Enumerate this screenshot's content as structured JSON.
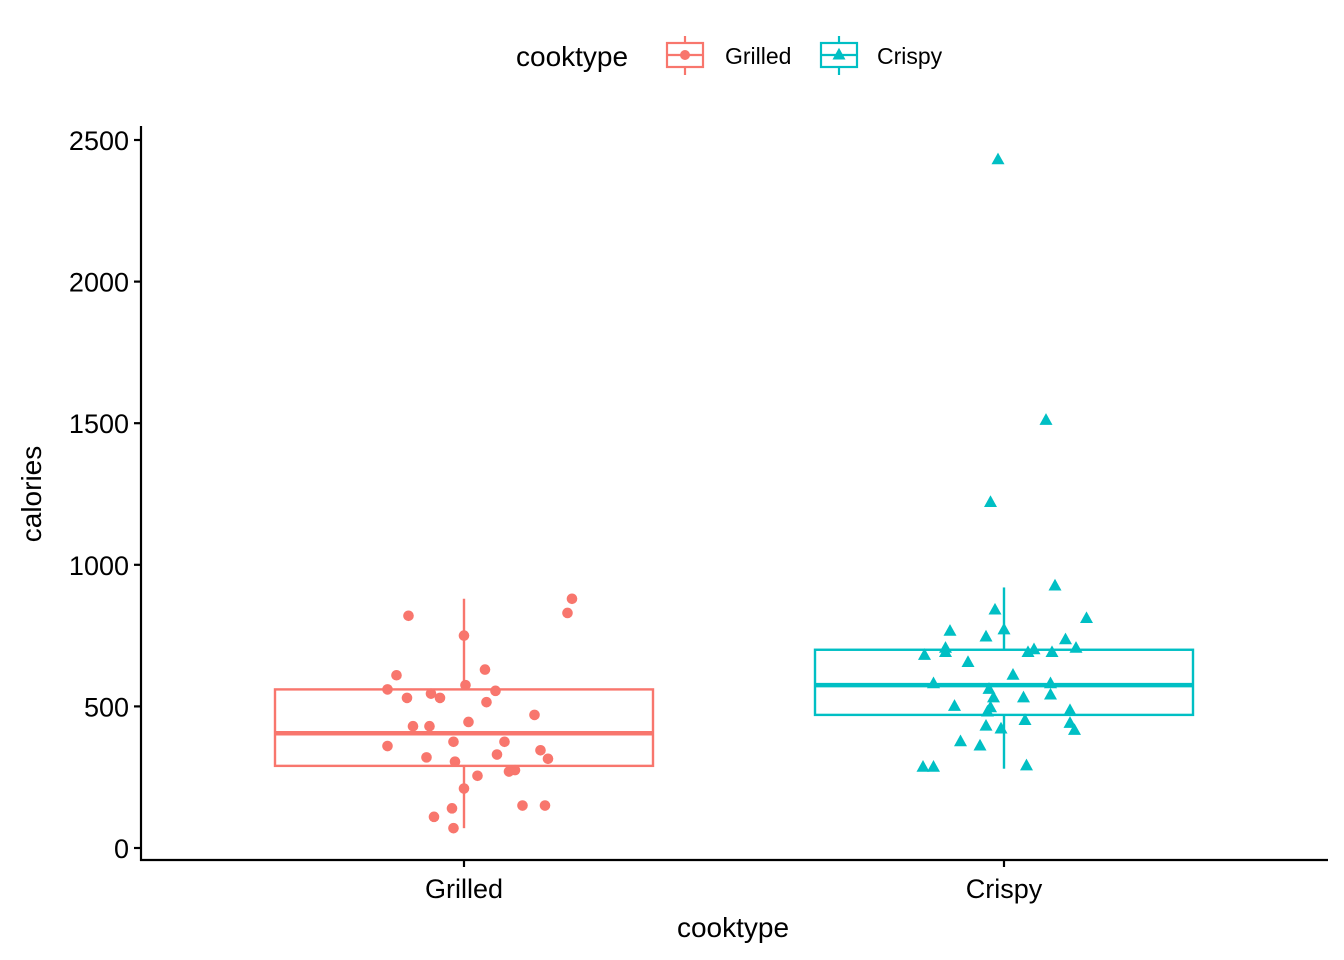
{
  "chart_data": {
    "type": "box",
    "xlabel": "cooktype",
    "ylabel": "calories",
    "ylim": [
      0,
      2500
    ],
    "y_ticks": [
      "0",
      "500",
      "1000",
      "1500",
      "2000",
      "2500"
    ],
    "categories": [
      "Grilled",
      "Crispy"
    ],
    "grid": false,
    "legend": {
      "title": "cooktype",
      "placement": "top",
      "entries": [
        "Grilled",
        "Crispy"
      ]
    },
    "series": [
      {
        "name": "Grilled",
        "color": "#F8766D",
        "marker": "circle",
        "box": {
          "whisker_low": 70,
          "q1": 290,
          "median": 405,
          "q3": 560,
          "whisker_high": 880
        },
        "points": [
          {
            "jitter": 0.72,
            "value": 880
          },
          {
            "jitter": 0.69,
            "value": 830
          },
          {
            "jitter": -0.37,
            "value": 820
          },
          {
            "jitter": 0.0,
            "value": 750
          },
          {
            "jitter": -0.45,
            "value": 610
          },
          {
            "jitter": 0.14,
            "value": 630
          },
          {
            "jitter": 0.01,
            "value": 575
          },
          {
            "jitter": -0.51,
            "value": 560
          },
          {
            "jitter": 0.21,
            "value": 555
          },
          {
            "jitter": -0.22,
            "value": 545
          },
          {
            "jitter": -0.38,
            "value": 530
          },
          {
            "jitter": -0.16,
            "value": 530
          },
          {
            "jitter": 0.15,
            "value": 515
          },
          {
            "jitter": 0.47,
            "value": 470
          },
          {
            "jitter": 0.03,
            "value": 445
          },
          {
            "jitter": -0.34,
            "value": 430
          },
          {
            "jitter": -0.23,
            "value": 430
          },
          {
            "jitter": -0.07,
            "value": 375
          },
          {
            "jitter": 0.27,
            "value": 375
          },
          {
            "jitter": -0.51,
            "value": 360
          },
          {
            "jitter": 0.51,
            "value": 345
          },
          {
            "jitter": 0.22,
            "value": 330
          },
          {
            "jitter": -0.25,
            "value": 320
          },
          {
            "jitter": 0.56,
            "value": 315
          },
          {
            "jitter": -0.06,
            "value": 305
          },
          {
            "jitter": 0.34,
            "value": 275
          },
          {
            "jitter": 0.3,
            "value": 270
          },
          {
            "jitter": 0.09,
            "value": 255
          },
          {
            "jitter": 0.0,
            "value": 210
          },
          {
            "jitter": 0.39,
            "value": 150
          },
          {
            "jitter": 0.54,
            "value": 150
          },
          {
            "jitter": -0.08,
            "value": 140
          },
          {
            "jitter": -0.2,
            "value": 110
          },
          {
            "jitter": -0.07,
            "value": 70
          }
        ]
      },
      {
        "name": "Crispy",
        "color": "#00BFC4",
        "marker": "triangle",
        "box": {
          "whisker_low": 280,
          "q1": 470,
          "median": 575,
          "q3": 700,
          "whisker_high": 920
        },
        "points": [
          {
            "jitter": -0.04,
            "value": 2430
          },
          {
            "jitter": 0.28,
            "value": 1510
          },
          {
            "jitter": -0.09,
            "value": 1220
          },
          {
            "jitter": 0.34,
            "value": 925
          },
          {
            "jitter": -0.06,
            "value": 840
          },
          {
            "jitter": 0.55,
            "value": 810
          },
          {
            "jitter": 0.0,
            "value": 770
          },
          {
            "jitter": -0.36,
            "value": 765
          },
          {
            "jitter": -0.12,
            "value": 745
          },
          {
            "jitter": 0.41,
            "value": 735
          },
          {
            "jitter": -0.39,
            "value": 705
          },
          {
            "jitter": 0.48,
            "value": 705
          },
          {
            "jitter": 0.2,
            "value": 700
          },
          {
            "jitter": -0.39,
            "value": 690
          },
          {
            "jitter": 0.16,
            "value": 690
          },
          {
            "jitter": 0.32,
            "value": 690
          },
          {
            "jitter": -0.53,
            "value": 680
          },
          {
            "jitter": -0.24,
            "value": 655
          },
          {
            "jitter": 0.06,
            "value": 610
          },
          {
            "jitter": 0.31,
            "value": 580
          },
          {
            "jitter": -0.47,
            "value": 580
          },
          {
            "jitter": -0.1,
            "value": 560
          },
          {
            "jitter": -0.07,
            "value": 530
          },
          {
            "jitter": 0.13,
            "value": 530
          },
          {
            "jitter": 0.31,
            "value": 540
          },
          {
            "jitter": -0.33,
            "value": 500
          },
          {
            "jitter": -0.09,
            "value": 495
          },
          {
            "jitter": -0.11,
            "value": 480
          },
          {
            "jitter": 0.44,
            "value": 485
          },
          {
            "jitter": 0.14,
            "value": 450
          },
          {
            "jitter": 0.44,
            "value": 440
          },
          {
            "jitter": -0.12,
            "value": 430
          },
          {
            "jitter": -0.02,
            "value": 420
          },
          {
            "jitter": 0.47,
            "value": 415
          },
          {
            "jitter": -0.29,
            "value": 375
          },
          {
            "jitter": -0.16,
            "value": 360
          },
          {
            "jitter": -0.54,
            "value": 285
          },
          {
            "jitter": -0.47,
            "value": 285
          },
          {
            "jitter": 0.15,
            "value": 290
          }
        ]
      }
    ]
  }
}
